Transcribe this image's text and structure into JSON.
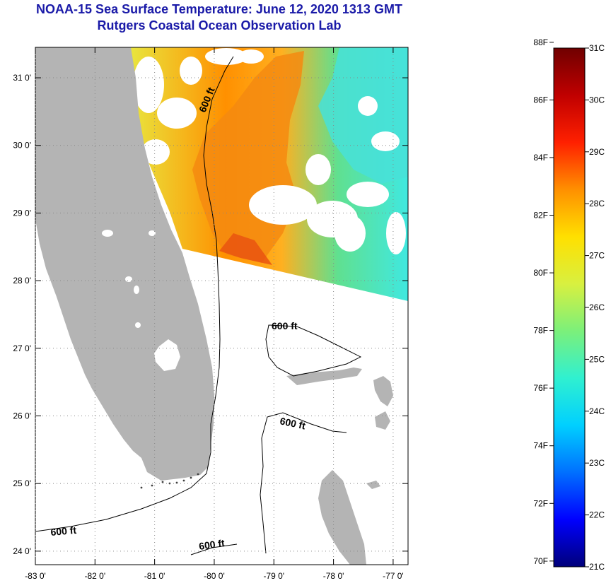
{
  "title": {
    "line1": "NOAA-15 Sea Surface Temperature:  June 12, 2020 1313 GMT",
    "line2": "Rutgers Coastal Ocean Observation Lab"
  },
  "map": {
    "lat_labels": [
      "31 0'",
      "30 0'",
      "29 0'",
      "28 0'",
      "27 0'",
      "26 0'",
      "25 0'",
      "24 0'"
    ],
    "lat_values": [
      31,
      30,
      29,
      28,
      27,
      26,
      25,
      24
    ],
    "lon_labels": [
      "-83 0'",
      "-82 0'",
      "-81 0'",
      "-80 0'",
      "-79 0'",
      "-78 0'",
      "-77 0'"
    ],
    "lon_values": [
      -83,
      -82,
      -81,
      -80,
      -79,
      -78,
      -77
    ],
    "lon_range": [
      -83,
      -76.75
    ],
    "lat_range": [
      23.8,
      31.45
    ],
    "isobath_labels": [
      "600 ft",
      "600 ft",
      "600 ft",
      "600 ft",
      "600 ft"
    ],
    "colors": {
      "land": "#b4b4b4",
      "ocean": "#ffffff",
      "grid": "#888888"
    }
  },
  "colorbar": {
    "f_labels": [
      "88F",
      "86F",
      "84F",
      "82F",
      "80F",
      "78F",
      "76F",
      "74F",
      "72F",
      "70F"
    ],
    "f_values": [
      88,
      86,
      84,
      82,
      80,
      78,
      76,
      74,
      72,
      70
    ],
    "c_labels": [
      "31C",
      "30C",
      "29C",
      "28C",
      "27C",
      "26C",
      "25C",
      "24C",
      "23C",
      "22C",
      "21C"
    ],
    "c_values": [
      31,
      30,
      29,
      28,
      27,
      26,
      25,
      24,
      23,
      22,
      21
    ],
    "range_c": [
      21,
      31
    ],
    "stops": [
      "#00007a",
      "#0000ff",
      "#0070ff",
      "#00d0ff",
      "#30f0d0",
      "#7cf07a",
      "#d8f040",
      "#ffe000",
      "#ff9000",
      "#ff2000",
      "#c00000",
      "#700000"
    ]
  }
}
